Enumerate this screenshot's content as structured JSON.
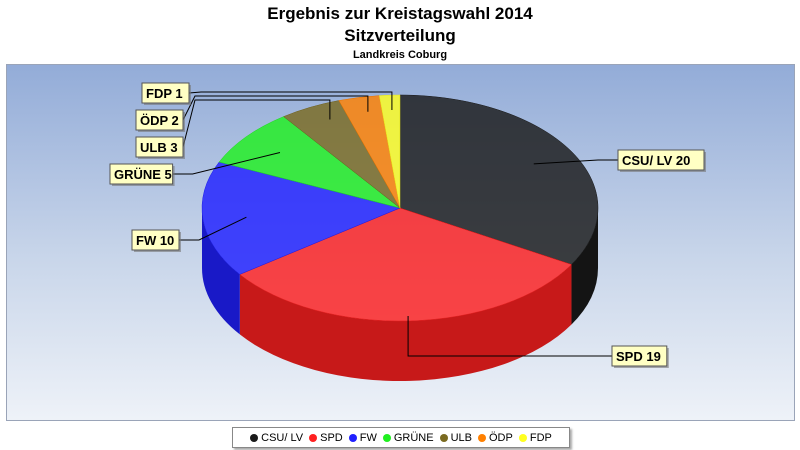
{
  "chart_data": {
    "type": "pie",
    "title": "Ergebnis zur Kreistagswahl 2014",
    "subtitle": "Sitzverteilung",
    "subtitle2": "Landkreis Coburg",
    "categories": [
      "CSU/ LV",
      "SPD",
      "FW",
      "GRÜNE",
      "ULB",
      "ÖDP",
      "FDP"
    ],
    "values": [
      20,
      19,
      10,
      5,
      3,
      2,
      1
    ],
    "colors": [
      "#1a1a1a",
      "#ff2020",
      "#2020ff",
      "#20f020",
      "#7a6a20",
      "#ff8000",
      "#ffff20"
    ],
    "data_labels": [
      "CSU/ LV 20",
      "SPD 19",
      "FW 10",
      "GRÜNE 5",
      "ULB 3",
      "ÖDP 2",
      "FDP 1"
    ],
    "legend_position": "bottom",
    "three_d": true
  }
}
